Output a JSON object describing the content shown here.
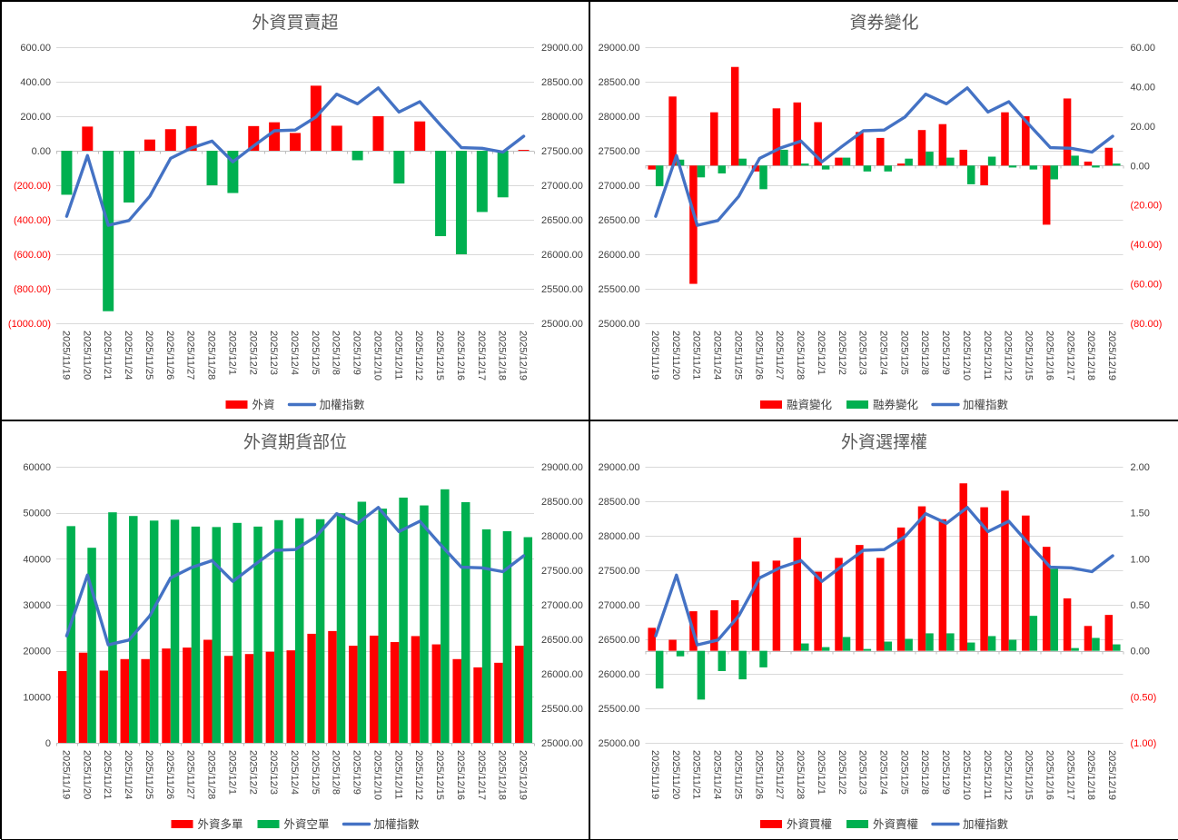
{
  "colors": {
    "bar_red": "#FF0000",
    "bar_green": "#00B050",
    "line_blue": "#4472C4",
    "gridline": "#D9D9D9",
    "axis_line": "#BFBFBF",
    "axis_text": "#404040",
    "negative_text": "#FF0000",
    "title_text": "#595959"
  },
  "categories": [
    "2025/11/19",
    "2025/11/20",
    "2025/11/21",
    "2025/11/24",
    "2025/11/25",
    "2025/11/26",
    "2025/11/27",
    "2025/11/28",
    "2025/12/1",
    "2025/12/2",
    "2025/12/3",
    "2025/12/4",
    "2025/12/5",
    "2025/12/8",
    "2025/12/9",
    "2025/12/10",
    "2025/12/11",
    "2025/12/12",
    "2025/12/15",
    "2025/12/16",
    "2025/12/17",
    "2025/12/18",
    "2025/12/19"
  ],
  "taiex": [
    26550,
    27430,
    26420,
    26490,
    26840,
    27390,
    27540,
    27640,
    27340,
    27570,
    27790,
    27800,
    27990,
    28320,
    28180,
    28410,
    28060,
    28210,
    27870,
    27545,
    27535,
    27480,
    27710
  ],
  "chart_data": [
    {
      "id": "foreign-net-buy-sell",
      "type": "bar+line",
      "title": "外資買賣超",
      "legend_position": "bottom",
      "grid": true,
      "axes": {
        "left": {
          "top": 600,
          "bottom": -1000,
          "labels": [
            "600.00",
            "400.00",
            "200.00",
            "0.00",
            "(200.00)",
            "(400.00)",
            "(600.00)",
            "(800.00)",
            "(1000.00)"
          ]
        },
        "right": {
          "top": 29000,
          "bottom": 25000,
          "labels": [
            "29000.00",
            "28500.00",
            "28000.00",
            "27500.00",
            "27000.00",
            "26500.00",
            "26000.00",
            "25500.00",
            "25000.00"
          ]
        }
      },
      "series": [
        {
          "name": "外資",
          "type": "bar",
          "axis": "left",
          "color": "#FF0000",
          "neg_color": "#00B050",
          "values": [
            -255,
            140,
            -930,
            -300,
            65,
            125,
            143,
            -200,
            -245,
            143,
            165,
            103,
            377,
            145,
            -55,
            200,
            -190,
            170,
            -495,
            -600,
            -355,
            -270,
            5
          ]
        },
        {
          "name": "加權指數",
          "type": "line",
          "axis": "right",
          "color": "#4472C4",
          "values_ref": "taiex"
        }
      ]
    },
    {
      "id": "margin-short-change",
      "type": "bar+line",
      "title": "資券變化",
      "legend_position": "bottom",
      "grid": true,
      "axes": {
        "left": {
          "top": 29000,
          "bottom": 25000,
          "labels": [
            "29000.00",
            "28500.00",
            "28000.00",
            "27500.00",
            "27000.00",
            "26500.00",
            "26000.00",
            "25500.00",
            "25000.00"
          ]
        },
        "right": {
          "top": 60,
          "bottom": -80,
          "labels": [
            "60.00",
            "40.00",
            "20.00",
            "0.00",
            "(20.00)",
            "(40.00)",
            "(60.00)",
            "(80.00)"
          ]
        }
      },
      "series": [
        {
          "name": "融資變化",
          "type": "bar",
          "axis": "right",
          "color": "#FF0000",
          "values": [
            -2,
            35,
            -60,
            27,
            50,
            -3,
            29,
            32,
            22,
            4,
            17,
            14,
            1,
            18,
            21,
            8,
            -10,
            27,
            25,
            -30,
            34,
            2,
            9
          ]
        },
        {
          "name": "融券變化",
          "type": "bar",
          "axis": "right",
          "color": "#00B050",
          "values": [
            -10.5,
            3,
            -6,
            -4,
            3.5,
            -12,
            8,
            1,
            -2,
            4,
            -3,
            -3,
            3.5,
            7,
            4,
            -9.5,
            4.5,
            -1,
            -2,
            -7,
            5,
            -1,
            1
          ]
        },
        {
          "name": "加權指數",
          "type": "line",
          "axis": "left",
          "color": "#4472C4",
          "values_ref": "taiex"
        }
      ]
    },
    {
      "id": "foreign-futures-positions",
      "type": "bar+line",
      "title": "外資期貨部位",
      "legend_position": "bottom",
      "grid": true,
      "axes": {
        "left": {
          "top": 60000,
          "bottom": 0,
          "labels": [
            "60000",
            "50000",
            "40000",
            "30000",
            "20000",
            "10000",
            "0"
          ]
        },
        "right": {
          "top": 29000,
          "bottom": 25000,
          "labels": [
            "29000.00",
            "28500.00",
            "28000.00",
            "27500.00",
            "27000.00",
            "26500.00",
            "26000.00",
            "25500.00",
            "25000.00"
          ]
        }
      },
      "series": [
        {
          "name": "外資多單",
          "type": "bar",
          "axis": "left",
          "color": "#FF0000",
          "values": [
            15600,
            19600,
            15700,
            18200,
            18200,
            20500,
            20700,
            22400,
            18900,
            19300,
            19800,
            20100,
            23700,
            24300,
            21100,
            23300,
            21900,
            23200,
            21400,
            18200,
            16400,
            17400,
            21100
          ]
        },
        {
          "name": "外資空單",
          "type": "bar",
          "axis": "left",
          "color": "#00B050",
          "values": [
            47100,
            42400,
            50100,
            49300,
            48300,
            48500,
            47000,
            46900,
            47800,
            47000,
            48400,
            48800,
            48600,
            49900,
            52400,
            50900,
            53300,
            51600,
            55100,
            52300,
            46400,
            46000,
            44700
          ]
        },
        {
          "name": "加權指數",
          "type": "line",
          "axis": "right",
          "color": "#4472C4",
          "values_ref": "taiex"
        }
      ]
    },
    {
      "id": "foreign-options",
      "type": "bar+line",
      "title": "外資選擇權",
      "legend_position": "bottom",
      "grid": true,
      "axes": {
        "left": {
          "top": 29000,
          "bottom": 25000,
          "labels": [
            "29000.00",
            "28500.00",
            "28000.00",
            "27500.00",
            "27000.00",
            "26500.00",
            "26000.00",
            "25500.00",
            "25000.00"
          ]
        },
        "right": {
          "top": 2,
          "bottom": -1,
          "labels": [
            "2.00",
            "1.50",
            "1.00",
            "0.50",
            "0.00",
            "(0.50)",
            "(1.00)"
          ]
        }
      },
      "series": [
        {
          "name": "外資買權",
          "type": "bar",
          "axis": "right",
          "color": "#FF0000",
          "values": [
            0.25,
            0.12,
            0.43,
            0.44,
            0.55,
            0.97,
            0.98,
            1.23,
            0.86,
            1.01,
            1.15,
            1.01,
            1.34,
            1.57,
            1.43,
            1.82,
            1.56,
            1.74,
            1.47,
            1.13,
            0.57,
            0.27,
            0.39
          ]
        },
        {
          "name": "外資賣權",
          "type": "bar",
          "axis": "right",
          "color": "#00B050",
          "values": [
            -0.41,
            -0.06,
            -0.53,
            -0.22,
            -0.31,
            -0.18,
            0,
            0.08,
            0.04,
            0.15,
            0.02,
            0.1,
            0.13,
            0.19,
            0.19,
            0.09,
            0.16,
            0.12,
            0.38,
            0.89,
            0.03,
            0.14,
            0.07
          ]
        },
        {
          "name": "加權指數",
          "type": "line",
          "axis": "left",
          "color": "#4472C4",
          "values_ref": "taiex"
        }
      ]
    }
  ]
}
